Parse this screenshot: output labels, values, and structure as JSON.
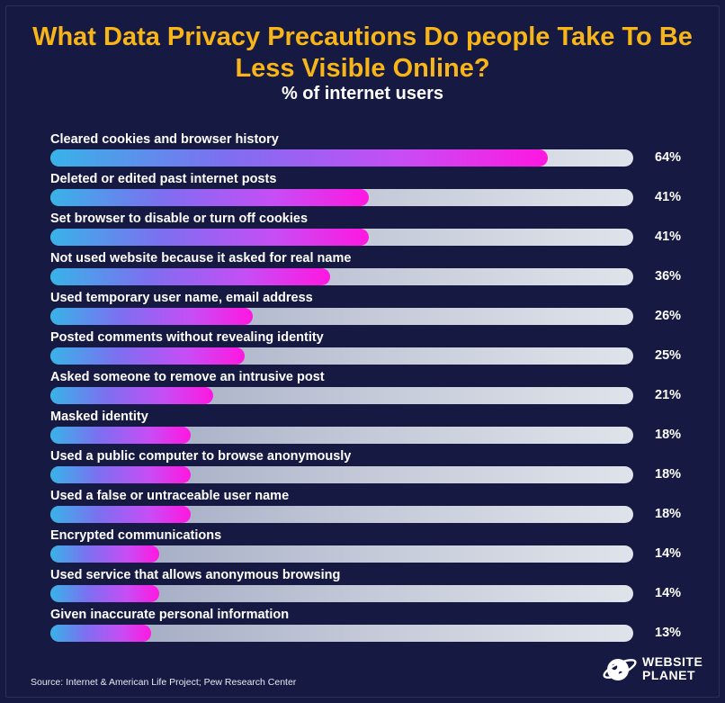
{
  "chart_data": {
    "type": "bar",
    "orientation": "horizontal",
    "title": "What Data Privacy Precautions Do people Take To Be Less Visible Online?",
    "subtitle": "% of internet users",
    "categories": [
      "Cleared cookies and browser history",
      "Deleted or edited past internet posts",
      "Set browser to disable or turn off cookies",
      "Not used website because it asked for real name",
      "Used temporary user name, email address",
      "Posted comments without revealing identity",
      "Asked someone to remove an intrusive post",
      "Masked identity",
      "Used a public computer to browse anonymously",
      "Used a false or untraceable user name",
      "Encrypted communications",
      "Used service that allows anonymous browsing",
      "Given inaccurate personal information"
    ],
    "values": [
      64,
      41,
      41,
      36,
      26,
      25,
      21,
      18,
      18,
      18,
      14,
      14,
      13
    ],
    "value_labels": [
      "64%",
      "41%",
      "41%",
      "36%",
      "26%",
      "25%",
      "21%",
      "18%",
      "18%",
      "18%",
      "14%",
      "14%",
      "13%"
    ],
    "xlim": [
      0,
      75
    ],
    "grid": false,
    "legend": "none",
    "colors": {
      "background": "#161a42",
      "title": "#f7b518",
      "bar_start": "#38b3e8",
      "bar_end": "#ff17e0",
      "track": "#c4cad8"
    }
  },
  "source": "Source: Internet & American Life Project; Pew Research Center",
  "logo": {
    "icon": "globe-planet-icon",
    "line1": "WEBSITE",
    "line2": "PLANET"
  }
}
